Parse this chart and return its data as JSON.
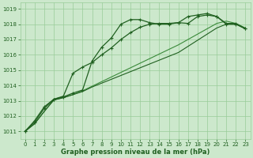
{
  "xlabel": "Graphe pression niveau de la mer (hPa)",
  "x": [
    0,
    1,
    2,
    3,
    4,
    5,
    6,
    7,
    8,
    9,
    10,
    11,
    12,
    13,
    14,
    15,
    16,
    17,
    18,
    19,
    20,
    21,
    22,
    23
  ],
  "lines": [
    {
      "y": [
        1011.0,
        1011.6,
        1012.5,
        1013.1,
        1013.25,
        1013.5,
        1013.7,
        1015.6,
        1016.5,
        1017.1,
        1018.0,
        1018.3,
        1018.3,
        1018.1,
        1018.0,
        1018.0,
        1018.1,
        1018.05,
        1018.5,
        1018.6,
        1018.5,
        1018.0,
        1018.0,
        1017.7
      ],
      "color": "#206020",
      "lw": 0.9,
      "marker": "+",
      "ms": 3.5,
      "zorder": 5
    },
    {
      "y": [
        1011.0,
        1011.5,
        1012.3,
        1013.05,
        1013.2,
        1013.4,
        1013.6,
        1013.9,
        1014.15,
        1014.4,
        1014.65,
        1014.9,
        1015.15,
        1015.4,
        1015.65,
        1015.9,
        1016.15,
        1016.55,
        1016.95,
        1017.35,
        1017.75,
        1018.0,
        1018.0,
        1017.7
      ],
      "color": "#206020",
      "lw": 0.8,
      "marker": null,
      "ms": 0,
      "zorder": 3
    },
    {
      "y": [
        1011.0,
        1011.5,
        1012.3,
        1013.05,
        1013.2,
        1013.4,
        1013.65,
        1013.95,
        1014.25,
        1014.55,
        1014.85,
        1015.15,
        1015.45,
        1015.75,
        1016.05,
        1016.35,
        1016.65,
        1017.0,
        1017.35,
        1017.7,
        1018.05,
        1018.2,
        1018.05,
        1017.75
      ],
      "color": "#3a8a3a",
      "lw": 0.8,
      "marker": null,
      "ms": 0,
      "zorder": 2
    },
    {
      "y": [
        1011.0,
        1011.7,
        1012.6,
        1013.1,
        1013.3,
        1014.8,
        1015.2,
        1015.5,
        1016.0,
        1016.45,
        1017.0,
        1017.45,
        1017.8,
        1018.0,
        1018.05,
        1018.05,
        1018.1,
        1018.5,
        1018.6,
        1018.7,
        1018.5,
        1018.05,
        1018.05,
        1017.7
      ],
      "color": "#206020",
      "lw": 0.9,
      "marker": "+",
      "ms": 3.5,
      "zorder": 4
    }
  ],
  "ylim": [
    1010.5,
    1019.4
  ],
  "yticks": [
    1011,
    1012,
    1013,
    1014,
    1015,
    1016,
    1017,
    1018,
    1019
  ],
  "xlim": [
    -0.5,
    23.5
  ],
  "xticks": [
    0,
    1,
    2,
    3,
    4,
    5,
    6,
    7,
    8,
    9,
    10,
    11,
    12,
    13,
    14,
    15,
    16,
    17,
    18,
    19,
    20,
    21,
    22,
    23
  ],
  "bg_color": "#cce8cc",
  "grid_color": "#99cc99",
  "tick_color": "#206020",
  "xlabel_color": "#206020",
  "tick_fontsize": 5.0,
  "xlabel_fontsize": 6.0
}
